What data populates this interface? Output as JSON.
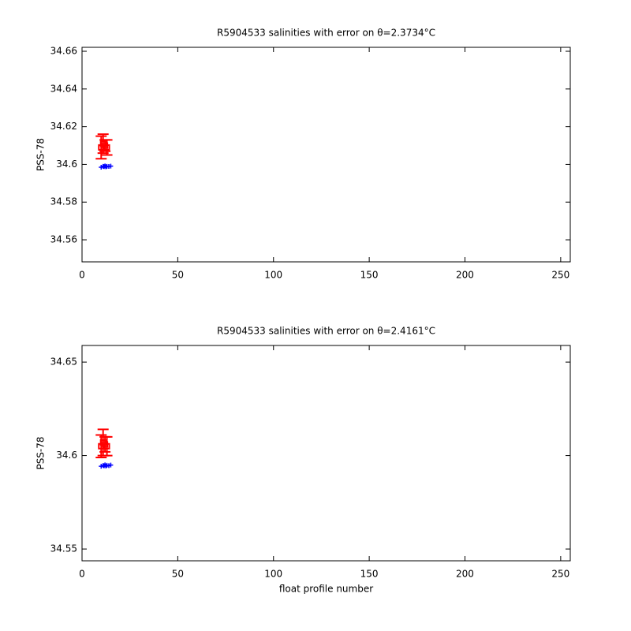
{
  "chart_data": [
    {
      "type": "scatter",
      "title": "R5904533 salinities with error on θ=2.3734°C",
      "y_label": "PSS-78",
      "xlim": [
        0,
        255
      ],
      "xticks": [
        0,
        50,
        100,
        150,
        200,
        250
      ],
      "ylim": [
        34.5483,
        34.6621
      ],
      "yticks": [
        34.56,
        34.58,
        34.6,
        34.62,
        34.64,
        34.66
      ],
      "series": [
        {
          "color": "#0000ff",
          "marker": "+",
          "x": [
            10,
            11,
            11.5,
            12,
            12.5,
            13,
            14,
            15
          ],
          "values": [
            34.5985,
            34.599,
            34.5988,
            34.5992,
            34.5987,
            34.599,
            34.5989,
            34.5991
          ]
        },
        {
          "color": "#ff0000",
          "marker": "errorbar",
          "x": [
            10,
            11,
            12,
            13
          ],
          "values": [
            34.609,
            34.611,
            34.61,
            34.609
          ],
          "errors": [
            0.006,
            0.005,
            0.003,
            0.004
          ]
        }
      ]
    },
    {
      "type": "scatter",
      "title": "R5904533 salinities with error on θ=2.4161°C",
      "y_label": "PSS-78",
      "x_label": "float profile number",
      "xlim": [
        0,
        255
      ],
      "xticks": [
        0,
        50,
        100,
        150,
        200,
        250
      ],
      "ylim": [
        34.5437,
        34.6589
      ],
      "yticks": [
        34.55,
        34.6,
        34.65
      ],
      "series": [
        {
          "color": "#0000ff",
          "marker": "+",
          "x": [
            10,
            11,
            11.5,
            12,
            12.5,
            13,
            14,
            15
          ],
          "values": [
            34.5943,
            34.5947,
            34.5945,
            34.595,
            34.5944,
            34.5948,
            34.5946,
            34.5949
          ]
        },
        {
          "color": "#ff0000",
          "marker": "errorbar",
          "x": [
            10,
            11,
            12,
            13
          ],
          "values": [
            34.605,
            34.607,
            34.606,
            34.605
          ],
          "errors": [
            0.006,
            0.007,
            0.004,
            0.005
          ]
        }
      ]
    }
  ]
}
